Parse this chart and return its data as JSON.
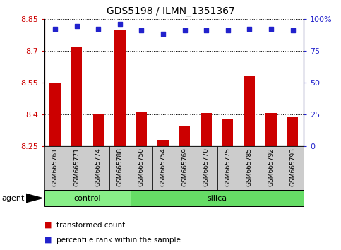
{
  "title": "GDS5198 / ILMN_1351367",
  "samples": [
    "GSM665761",
    "GSM665771",
    "GSM665774",
    "GSM665788",
    "GSM665750",
    "GSM665754",
    "GSM665769",
    "GSM665770",
    "GSM665775",
    "GSM665785",
    "GSM665792",
    "GSM665793"
  ],
  "groups": [
    "control",
    "control",
    "control",
    "control",
    "silica",
    "silica",
    "silica",
    "silica",
    "silica",
    "silica",
    "silica",
    "silica"
  ],
  "bar_values": [
    8.55,
    8.72,
    8.4,
    8.8,
    8.41,
    8.28,
    8.345,
    8.405,
    8.375,
    8.58,
    8.405,
    8.39
  ],
  "percentile_values": [
    92,
    94,
    92,
    96,
    91,
    88,
    91,
    91,
    91,
    92,
    92,
    91
  ],
  "ymin": 8.25,
  "ymax": 8.85,
  "yticks": [
    8.25,
    8.4,
    8.55,
    8.7,
    8.85
  ],
  "ytick_labels": [
    "8.25",
    "8.4",
    "8.55",
    "8.7",
    "8.85"
  ],
  "y2min": 0,
  "y2max": 100,
  "y2ticks": [
    0,
    25,
    50,
    75,
    100
  ],
  "y2tick_labels": [
    "0",
    "25",
    "50",
    "75",
    "100%"
  ],
  "bar_color": "#cc0000",
  "dot_color": "#2222cc",
  "control_color": "#88ee88",
  "silica_color": "#66dd66",
  "tick_label_bg": "#cccccc",
  "legend_items": [
    {
      "label": "transformed count",
      "color": "#cc0000"
    },
    {
      "label": "percentile rank within the sample",
      "color": "#2222cc"
    }
  ],
  "agent_label": "agent",
  "left_tick_color": "#cc0000",
  "right_tick_color": "#2222cc",
  "n_control": 4,
  "n_silica": 8
}
